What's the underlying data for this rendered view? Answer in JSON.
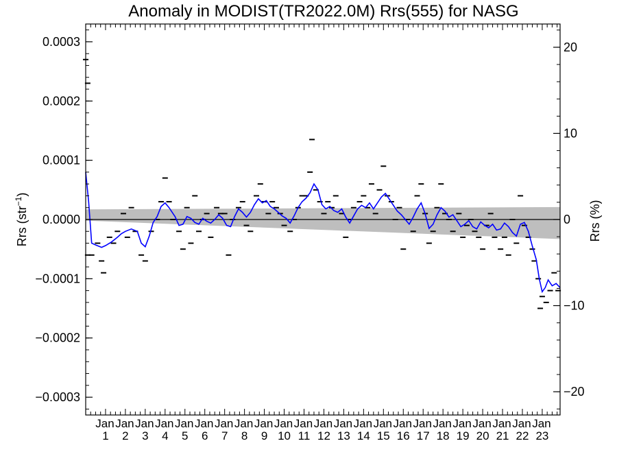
{
  "chart_data": {
    "type": "line",
    "title": "Anomaly in MODIST(TR2022.0M) Rrs(555) for NASG",
    "ylabel_left": "Rrs (str",
    "ylabel_left_sup": "−1",
    "ylabel_left_close": ")",
    "ylabel_right": "Rrs (%)",
    "xlabel": "",
    "xlim": [
      2000.0,
      2023.9
    ],
    "ylim": [
      -0.00033,
      0.00033
    ],
    "ylim_right": [
      -22.7,
      22.7
    ],
    "left_ticks": [
      {
        "value": 0.0003,
        "label": "0.0003"
      },
      {
        "value": 0.0002,
        "label": "0.0002"
      },
      {
        "value": 0.0001,
        "label": "0.0001"
      },
      {
        "value": 0.0,
        "label": "0.0000"
      },
      {
        "value": -0.0001,
        "label": "−0.0001"
      },
      {
        "value": -0.0002,
        "label": "−0.0002"
      },
      {
        "value": -0.0003,
        "label": "−0.0003"
      }
    ],
    "right_ticks": [
      {
        "value": 20,
        "label": "20"
      },
      {
        "value": 10,
        "label": "10"
      },
      {
        "value": 0,
        "label": "0"
      },
      {
        "value": -10,
        "label": "−10"
      },
      {
        "value": -20,
        "label": "−20"
      }
    ],
    "x_ticks": [
      {
        "year": 2001,
        "month": "Jan",
        "yr": "1"
      },
      {
        "year": 2002,
        "month": "Jan",
        "yr": "2"
      },
      {
        "year": 2003,
        "month": "Jan",
        "yr": "3"
      },
      {
        "year": 2004,
        "month": "Jan",
        "yr": "4"
      },
      {
        "year": 2005,
        "month": "Jan",
        "yr": "5"
      },
      {
        "year": 2006,
        "month": "Jan",
        "yr": "6"
      },
      {
        "year": 2007,
        "month": "Jan",
        "yr": "7"
      },
      {
        "year": 2008,
        "month": "Jan",
        "yr": "8"
      },
      {
        "year": 2009,
        "month": "Jan",
        "yr": "9"
      },
      {
        "year": 2010,
        "month": "Jan",
        "yr": "10"
      },
      {
        "year": 2011,
        "month": "Jan",
        "yr": "11"
      },
      {
        "year": 2012,
        "month": "Jan",
        "yr": "12"
      },
      {
        "year": 2013,
        "month": "Jan",
        "yr": "13"
      },
      {
        "year": 2014,
        "month": "Jan",
        "yr": "14"
      },
      {
        "year": 2015,
        "month": "Jan",
        "yr": "15"
      },
      {
        "year": 2016,
        "month": "Jan",
        "yr": "16"
      },
      {
        "year": 2017,
        "month": "Jan",
        "yr": "17"
      },
      {
        "year": 2018,
        "month": "Jan",
        "yr": "18"
      },
      {
        "year": 2019,
        "month": "Jan",
        "yr": "19"
      },
      {
        "year": 2020,
        "month": "Jan",
        "yr": "20"
      },
      {
        "year": 2021,
        "month": "Jan",
        "yr": "21"
      },
      {
        "year": 2022,
        "month": "Jan",
        "yr": "22"
      },
      {
        "year": 2023,
        "month": "Jan",
        "yr": "23"
      }
    ],
    "band": {
      "color": "#bebebe",
      "x": [
        2000.0,
        2023.9
      ],
      "upper": [
        1.7e-05,
        2.1e-05
      ],
      "lower": [
        -2e-06,
        -3.3e-05
      ]
    },
    "zero_line": 0.0,
    "series": [
      {
        "type": "line",
        "color": "#0000ff",
        "points": [
          [
            2000.0,
            8e-05
          ],
          [
            2000.15,
            3e-05
          ],
          [
            2000.3,
            -4e-05
          ],
          [
            2000.5,
            -4.3e-05
          ],
          [
            2000.8,
            -4.7e-05
          ],
          [
            2001.0,
            -4.4e-05
          ],
          [
            2001.3,
            -3.8e-05
          ],
          [
            2001.6,
            -3e-05
          ],
          [
            2001.8,
            -2.4e-05
          ],
          [
            2002.0,
            -2e-05
          ],
          [
            2002.3,
            -1.6e-05
          ],
          [
            2002.6,
            -2e-05
          ],
          [
            2002.8,
            -4e-05
          ],
          [
            2003.0,
            -4.6e-05
          ],
          [
            2003.2,
            -2.8e-05
          ],
          [
            2003.4,
            -5e-06
          ],
          [
            2003.6,
            5e-06
          ],
          [
            2003.8,
            2.2e-05
          ],
          [
            2004.0,
            2.8e-05
          ],
          [
            2004.2,
            2e-05
          ],
          [
            2004.5,
            5e-06
          ],
          [
            2004.7,
            -1e-05
          ],
          [
            2004.9,
            -8e-06
          ],
          [
            2005.1,
            5e-06
          ],
          [
            2005.3,
            2e-06
          ],
          [
            2005.5,
            -5e-06
          ],
          [
            2005.7,
            -8e-06
          ],
          [
            2005.9,
            2e-06
          ],
          [
            2006.1,
            -3e-06
          ],
          [
            2006.3,
            -6e-06
          ],
          [
            2006.5,
            0.0
          ],
          [
            2006.7,
            8e-06
          ],
          [
            2006.9,
            2e-06
          ],
          [
            2007.1,
            -1e-05
          ],
          [
            2007.3,
            -1.2e-05
          ],
          [
            2007.5,
            5e-06
          ],
          [
            2007.7,
            1.8e-05
          ],
          [
            2007.9,
            1.2e-05
          ],
          [
            2008.1,
            4e-06
          ],
          [
            2008.3,
            1.2e-05
          ],
          [
            2008.5,
            2.5e-05
          ],
          [
            2008.7,
            3.5e-05
          ],
          [
            2008.9,
            2.8e-05
          ],
          [
            2009.1,
            3.2e-05
          ],
          [
            2009.3,
            2.2e-05
          ],
          [
            2009.5,
            1.8e-05
          ],
          [
            2009.7,
            1.2e-05
          ],
          [
            2009.9,
            6e-06
          ],
          [
            2010.1,
            2e-06
          ],
          [
            2010.3,
            -6e-06
          ],
          [
            2010.5,
            6e-06
          ],
          [
            2010.7,
            2e-05
          ],
          [
            2010.9,
            3e-05
          ],
          [
            2011.1,
            3.6e-05
          ],
          [
            2011.3,
            4.5e-05
          ],
          [
            2011.5,
            6e-05
          ],
          [
            2011.7,
            5e-05
          ],
          [
            2011.9,
            2.5e-05
          ],
          [
            2012.1,
            1.8e-05
          ],
          [
            2012.3,
            2.2e-05
          ],
          [
            2012.5,
            1.5e-05
          ],
          [
            2012.7,
            1.2e-05
          ],
          [
            2012.9,
            1.8e-05
          ],
          [
            2013.1,
            4e-06
          ],
          [
            2013.3,
            -6e-06
          ],
          [
            2013.5,
            6e-06
          ],
          [
            2013.7,
            1.8e-05
          ],
          [
            2013.9,
            2.4e-05
          ],
          [
            2014.1,
            2e-05
          ],
          [
            2014.3,
            2.8e-05
          ],
          [
            2014.5,
            1.8e-05
          ],
          [
            2014.7,
            2.8e-05
          ],
          [
            2014.9,
            3.8e-05
          ],
          [
            2015.1,
            4.4e-05
          ],
          [
            2015.3,
            3.4e-05
          ],
          [
            2015.5,
            2.4e-05
          ],
          [
            2015.7,
            1.4e-05
          ],
          [
            2015.9,
            8e-06
          ],
          [
            2016.1,
            0.0
          ],
          [
            2016.3,
            -8e-06
          ],
          [
            2016.5,
            4e-06
          ],
          [
            2016.7,
            1.8e-05
          ],
          [
            2016.9,
            2.8e-05
          ],
          [
            2017.1,
            1e-05
          ],
          [
            2017.3,
            -1.5e-05
          ],
          [
            2017.5,
            -8e-06
          ],
          [
            2017.7,
            8e-06
          ],
          [
            2017.9,
            2e-05
          ],
          [
            2018.1,
            1.4e-05
          ],
          [
            2018.3,
            4e-06
          ],
          [
            2018.5,
            8e-06
          ],
          [
            2018.7,
            -2e-06
          ],
          [
            2018.9,
            -1.2e-05
          ],
          [
            2019.1,
            -8e-06
          ],
          [
            2019.3,
            -2e-06
          ],
          [
            2019.5,
            -1.2e-05
          ],
          [
            2019.7,
            -1.6e-05
          ],
          [
            2019.9,
            -4e-06
          ],
          [
            2020.1,
            -1e-05
          ],
          [
            2020.3,
            -1.4e-05
          ],
          [
            2020.5,
            -8e-06
          ],
          [
            2020.7,
            -1.8e-05
          ],
          [
            2020.9,
            -1.6e-05
          ],
          [
            2021.1,
            -6e-06
          ],
          [
            2021.3,
            -1.2e-05
          ],
          [
            2021.5,
            -2.2e-05
          ],
          [
            2021.7,
            -2.8e-05
          ],
          [
            2021.9,
            -8e-06
          ],
          [
            2022.1,
            -5e-06
          ],
          [
            2022.3,
            -2e-05
          ],
          [
            2022.5,
            -4.5e-05
          ],
          [
            2022.7,
            -6.8e-05
          ],
          [
            2022.85,
            -0.0001
          ],
          [
            2023.0,
            -0.000122
          ],
          [
            2023.15,
            -0.000115
          ],
          [
            2023.3,
            -0.000102
          ],
          [
            2023.5,
            -0.000112
          ],
          [
            2023.7,
            -0.000108
          ],
          [
            2023.9,
            -0.000115
          ]
        ]
      }
    ],
    "monthly_markers": [
      [
        2000.0,
        0.00027
      ],
      [
        2000.1,
        0.00023
      ],
      [
        2000.1,
        -6e-05
      ],
      [
        2000.3,
        -6e-05
      ],
      [
        2000.6,
        -4e-05
      ],
      [
        2000.8,
        -7e-05
      ],
      [
        2000.9,
        -9e-05
      ],
      [
        2001.2,
        -3e-05
      ],
      [
        2001.4,
        -4e-05
      ],
      [
        2001.6,
        -2e-05
      ],
      [
        2001.9,
        1e-05
      ],
      [
        2002.1,
        -3e-05
      ],
      [
        2002.3,
        2e-05
      ],
      [
        2002.5,
        -2e-05
      ],
      [
        2002.8,
        -6e-05
      ],
      [
        2003.0,
        -7e-05
      ],
      [
        2003.3,
        -2e-05
      ],
      [
        2003.6,
        0.0
      ],
      [
        2003.8,
        3e-05
      ],
      [
        2004.0,
        7e-05
      ],
      [
        2004.2,
        3e-05
      ],
      [
        2004.4,
        0.0
      ],
      [
        2004.7,
        -2e-05
      ],
      [
        2004.9,
        -5e-05
      ],
      [
        2005.1,
        2e-05
      ],
      [
        2005.3,
        -4e-05
      ],
      [
        2005.5,
        4e-05
      ],
      [
        2005.7,
        -2e-05
      ],
      [
        2005.9,
        0.0
      ],
      [
        2006.1,
        1e-05
      ],
      [
        2006.3,
        -3e-05
      ],
      [
        2006.6,
        2e-05
      ],
      [
        2006.8,
        1e-05
      ],
      [
        2007.0,
        1e-05
      ],
      [
        2007.2,
        -6e-05
      ],
      [
        2007.4,
        0.0
      ],
      [
        2007.7,
        2e-05
      ],
      [
        2007.9,
        3e-05
      ],
      [
        2008.1,
        -1e-05
      ],
      [
        2008.3,
        -2e-05
      ],
      [
        2008.6,
        4e-05
      ],
      [
        2008.8,
        6e-05
      ],
      [
        2009.0,
        3e-05
      ],
      [
        2009.2,
        1e-05
      ],
      [
        2009.4,
        3e-05
      ],
      [
        2009.6,
        2e-05
      ],
      [
        2009.8,
        1e-05
      ],
      [
        2010.0,
        -1e-05
      ],
      [
        2010.3,
        -2e-05
      ],
      [
        2010.5,
        0.0
      ],
      [
        2010.7,
        2e-05
      ],
      [
        2010.9,
        4e-05
      ],
      [
        2011.1,
        4e-05
      ],
      [
        2011.3,
        8e-05
      ],
      [
        2011.4,
        0.000135
      ],
      [
        2011.6,
        5e-05
      ],
      [
        2011.8,
        3e-05
      ],
      [
        2012.0,
        1e-05
      ],
      [
        2012.2,
        3e-05
      ],
      [
        2012.4,
        2e-05
      ],
      [
        2012.6,
        4e-05
      ],
      [
        2012.9,
        1e-05
      ],
      [
        2013.1,
        -3e-05
      ],
      [
        2013.3,
        0.0
      ],
      [
        2013.5,
        2e-05
      ],
      [
        2013.8,
        3e-05
      ],
      [
        2014.0,
        4e-05
      ],
      [
        2014.2,
        2e-05
      ],
      [
        2014.4,
        6e-05
      ],
      [
        2014.6,
        1e-05
      ],
      [
        2014.8,
        5e-05
      ],
      [
        2015.0,
        9e-05
      ],
      [
        2015.2,
        4e-05
      ],
      [
        2015.4,
        3e-05
      ],
      [
        2015.6,
        0.0
      ],
      [
        2015.8,
        2e-05
      ],
      [
        2016.0,
        -5e-05
      ],
      [
        2016.2,
        0.0
      ],
      [
        2016.5,
        -2e-05
      ],
      [
        2016.7,
        4e-05
      ],
      [
        2016.9,
        6e-05
      ],
      [
        2017.1,
        1e-05
      ],
      [
        2017.3,
        -4e-05
      ],
      [
        2017.5,
        -2e-05
      ],
      [
        2017.7,
        2e-05
      ],
      [
        2017.9,
        6e-05
      ],
      [
        2018.1,
        1e-05
      ],
      [
        2018.3,
        0.0
      ],
      [
        2018.5,
        -2e-05
      ],
      [
        2018.8,
        1e-05
      ],
      [
        2019.0,
        -3e-05
      ],
      [
        2019.2,
        -1e-05
      ],
      [
        2019.4,
        0.0
      ],
      [
        2019.6,
        -2e-05
      ],
      [
        2019.8,
        -3e-05
      ],
      [
        2020.0,
        -5e-05
      ],
      [
        2020.2,
        -1e-05
      ],
      [
        2020.4,
        1e-05
      ],
      [
        2020.6,
        -3e-05
      ],
      [
        2020.9,
        -5e-05
      ],
      [
        2021.1,
        -3e-05
      ],
      [
        2021.3,
        -6e-05
      ],
      [
        2021.5,
        0.0
      ],
      [
        2021.7,
        -4e-05
      ],
      [
        2021.9,
        4e-05
      ],
      [
        2022.1,
        -1e-05
      ],
      [
        2022.3,
        -3e-05
      ],
      [
        2022.5,
        -5e-05
      ],
      [
        2022.6,
        -7e-05
      ],
      [
        2022.8,
        -0.0001
      ],
      [
        2022.9,
        -0.00015
      ],
      [
        2023.0,
        -0.00013
      ],
      [
        2023.2,
        -0.00014
      ],
      [
        2023.4,
        -0.00012
      ],
      [
        2023.6,
        -9e-05
      ],
      [
        2023.8,
        -0.00012
      ]
    ]
  }
}
